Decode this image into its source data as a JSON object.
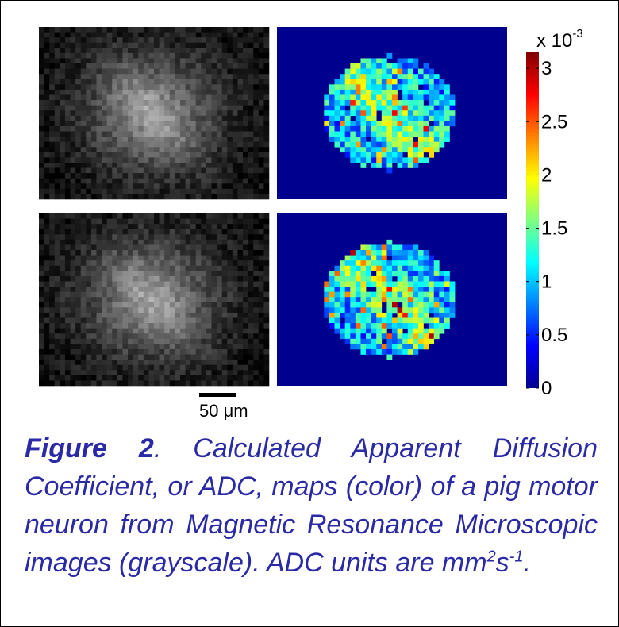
{
  "figure": {
    "colorbar": {
      "ylim": [
        0,
        3.15
      ],
      "yticks": [
        0,
        0.5,
        1,
        1.5,
        2,
        2.5,
        3
      ],
      "multiplier": "x 10",
      "exponent": "-3"
    },
    "scale_bar": "50 μm",
    "caption": {
      "label": "Figure 2",
      "text": ". Calculated Apparent Diffusion Coefficient, or ADC, maps (color) of a pig motor neuron from Magnetic Resonance Microscopic images (grayscale).   ADC units are mm",
      "exp1": "2",
      "unit2": "s",
      "exp2": "-1",
      "end": "."
    }
  }
}
